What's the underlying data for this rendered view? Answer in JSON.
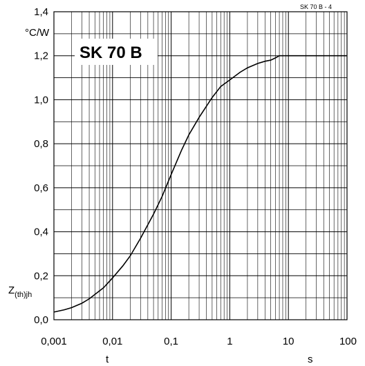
{
  "chart_data": {
    "type": "line",
    "title": "SK 70 B",
    "figure_id": "SK 70 B - 4",
    "ylabel_unit": "°C/W",
    "ylabel_symbol": "Z",
    "ylabel_subscript": "(th)jh",
    "xlabel_symbol": "t",
    "xlabel_unit": "s",
    "x_scale": "log",
    "xlim": [
      0.001,
      100
    ],
    "ylim": [
      0,
      1.4
    ],
    "grid": true,
    "x_ticks": [
      "0,001",
      "0,01",
      "0,1",
      "1",
      "10",
      "100"
    ],
    "y_ticks": [
      "0,0",
      "0,2",
      "0,4",
      "0,6",
      "0,8",
      "1,0",
      "1,2",
      "1,4"
    ],
    "series": [
      {
        "x": [
          0.001,
          0.0015,
          0.002,
          0.003,
          0.004,
          0.005,
          0.007,
          0.01,
          0.015,
          0.02,
          0.03,
          0.05,
          0.07,
          0.1,
          0.15,
          0.2,
          0.3,
          0.5,
          0.7,
          1,
          1.5,
          2,
          3,
          4,
          5,
          6,
          7,
          10,
          20,
          50,
          100
        ],
        "y": [
          0.035,
          0.045,
          0.055,
          0.075,
          0.095,
          0.115,
          0.145,
          0.19,
          0.245,
          0.29,
          0.37,
          0.48,
          0.56,
          0.66,
          0.77,
          0.84,
          0.92,
          1.01,
          1.06,
          1.09,
          1.125,
          1.145,
          1.165,
          1.175,
          1.18,
          1.19,
          1.2,
          1.2,
          1.2,
          1.2,
          1.2
        ]
      }
    ]
  }
}
